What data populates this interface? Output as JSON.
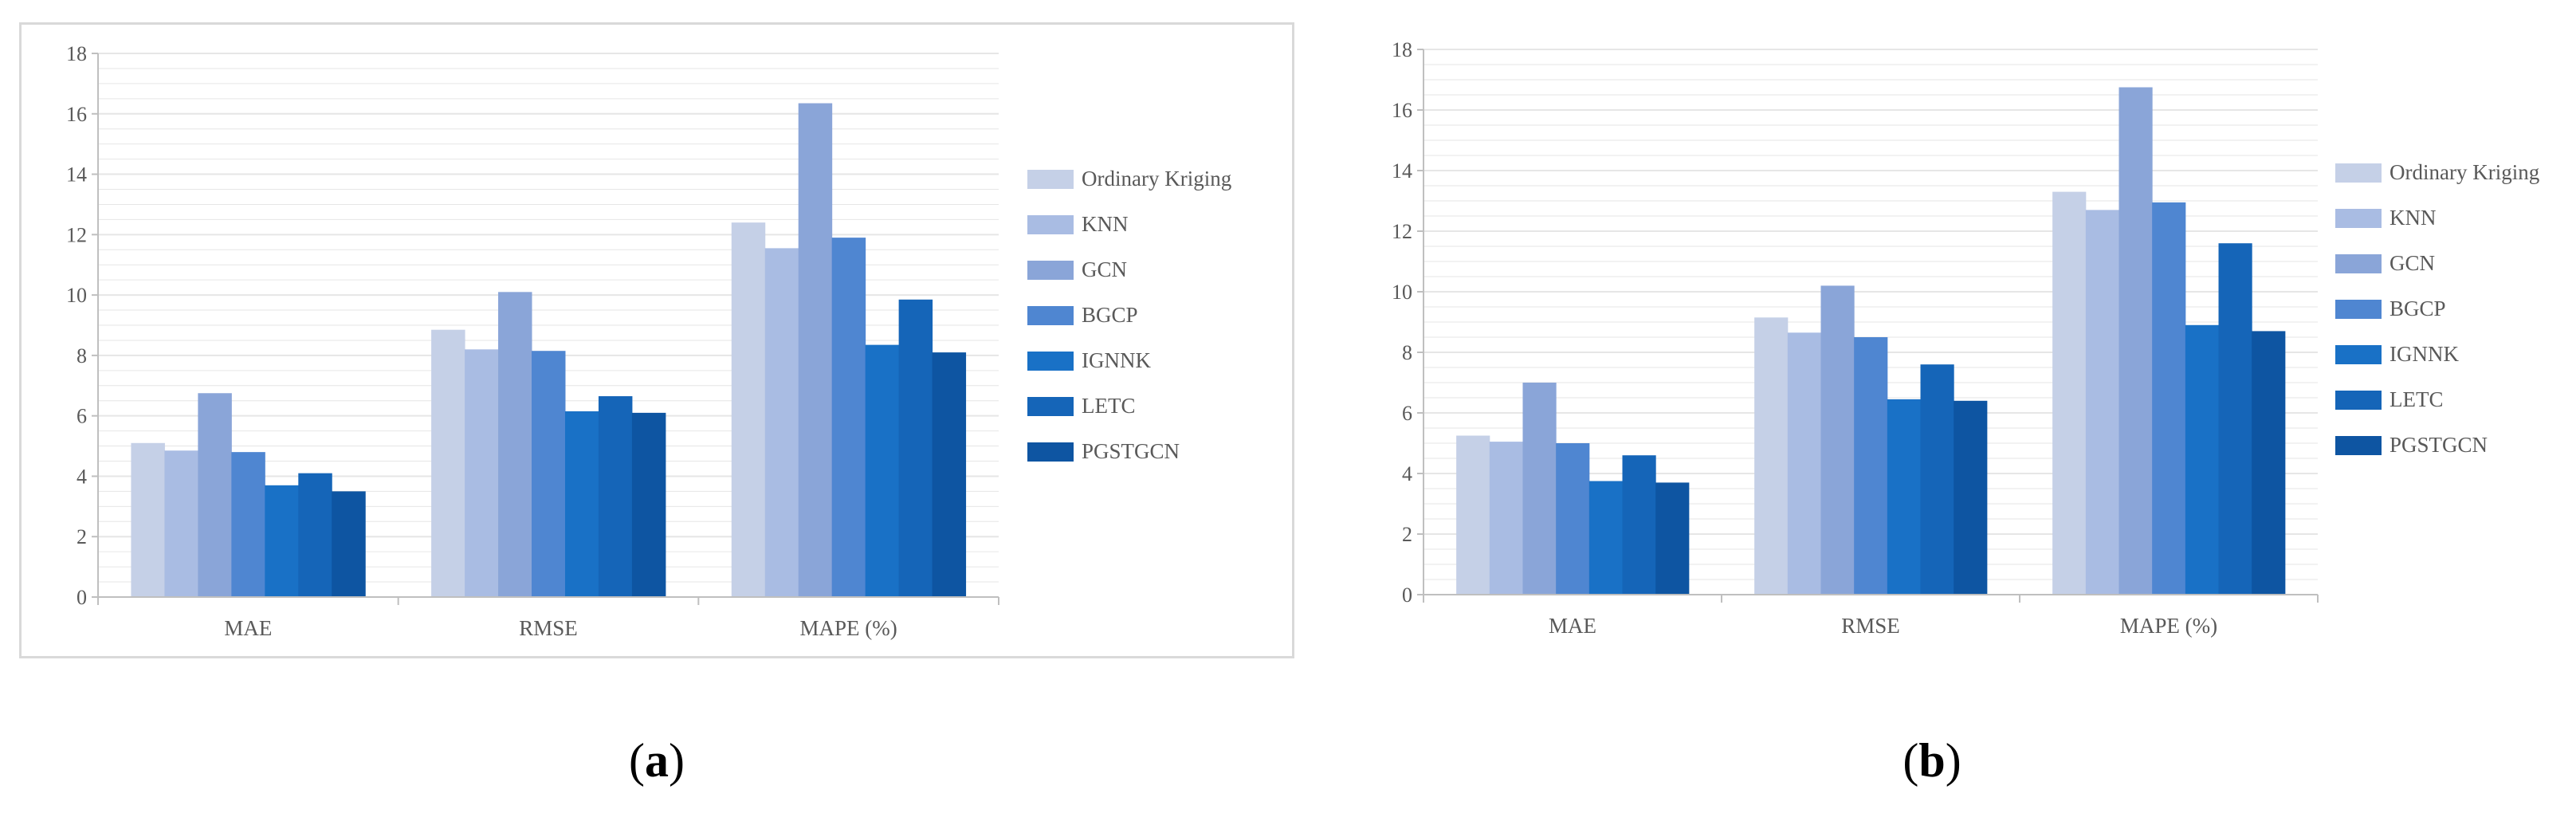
{
  "colors": {
    "series": [
      "#c5d0e7",
      "#a9bce3",
      "#8aa5d8",
      "#4f86d1",
      "#1971c6",
      "#1565b8",
      "#0e55a2"
    ],
    "grid": "#e6e6e6",
    "axis": "#bfbfbf",
    "text": "#595959"
  },
  "chart_data": [
    {
      "type": "bar",
      "panel_label": "a",
      "categories": [
        "MAE",
        "RMSE",
        "MAPE (%)"
      ],
      "ylim": [
        0,
        18
      ],
      "yticks": [
        0,
        2,
        4,
        6,
        8,
        10,
        12,
        14,
        16,
        18
      ],
      "grid": true,
      "legend_position": "right",
      "series": [
        {
          "name": "Ordinary Kriging",
          "values": [
            5.1,
            8.85,
            12.4
          ]
        },
        {
          "name": "KNN",
          "values": [
            4.85,
            8.2,
            11.55
          ]
        },
        {
          "name": "GCN",
          "values": [
            6.75,
            10.1,
            16.35
          ]
        },
        {
          "name": "BGCP",
          "values": [
            4.8,
            8.15,
            11.9
          ]
        },
        {
          "name": "IGNNK",
          "values": [
            3.7,
            6.15,
            8.35
          ]
        },
        {
          "name": "LETC",
          "values": [
            4.1,
            6.65,
            9.85
          ]
        },
        {
          "name": "PGSTGCN",
          "values": [
            3.5,
            6.1,
            8.1
          ]
        }
      ]
    },
    {
      "type": "bar",
      "panel_label": "b",
      "categories": [
        "MAE",
        "RMSE",
        "MAPE (%)"
      ],
      "ylim": [
        0,
        18
      ],
      "yticks": [
        0,
        2,
        4,
        6,
        8,
        10,
        12,
        14,
        16,
        18
      ],
      "grid": true,
      "legend_position": "right",
      "series": [
        {
          "name": "Ordinary Kriging",
          "values": [
            5.25,
            9.15,
            13.3
          ]
        },
        {
          "name": "KNN",
          "values": [
            5.05,
            8.65,
            12.7
          ]
        },
        {
          "name": "GCN",
          "values": [
            7.0,
            10.2,
            16.75
          ]
        },
        {
          "name": "BGCP",
          "values": [
            5.0,
            8.5,
            12.95
          ]
        },
        {
          "name": "IGNNK",
          "values": [
            3.75,
            6.45,
            8.9
          ]
        },
        {
          "name": "LETC",
          "values": [
            4.6,
            7.6,
            11.6
          ]
        },
        {
          "name": "PGSTGCN",
          "values": [
            3.7,
            6.4,
            8.7
          ]
        }
      ]
    }
  ],
  "captions": {
    "a": {
      "open": "(",
      "letter": "a",
      "close": ")"
    },
    "b": {
      "open": "(",
      "letter": "b",
      "close": ")"
    }
  }
}
